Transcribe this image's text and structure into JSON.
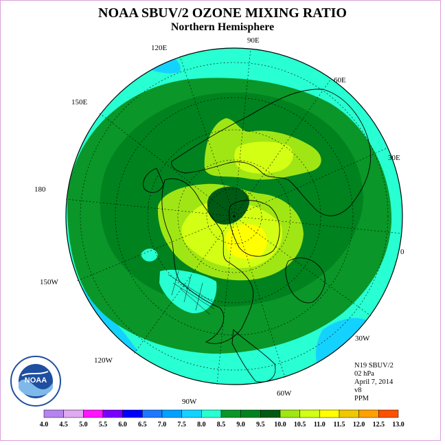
{
  "header": {
    "title": "NOAA SBUV/2 OZONE MIXING RATIO",
    "subtitle": "Northern Hemisphere"
  },
  "map": {
    "projection": "north polar stereographic",
    "longitude_labels": [
      "90E",
      "60E",
      "30E",
      "0",
      "30W",
      "60W",
      "90W",
      "120W",
      "150W",
      "180",
      "150E",
      "120E"
    ],
    "field": "ozone mixing ratio (PPM)"
  },
  "info": {
    "instrument": "N19 SBUV/2",
    "level": "02 hPa",
    "date": "April 7, 2014",
    "version": "v8",
    "units": "PPM"
  },
  "colorbar": {
    "labels": [
      "4.0",
      "4.5",
      "5.0",
      "5.5",
      "6.0",
      "6.5",
      "7.0",
      "7.5",
      "8.0",
      "8.5",
      "9.0",
      "9.5",
      "10.0",
      "10.5",
      "11.0",
      "11.5",
      "12.0",
      "12.5",
      "13.0"
    ],
    "colors": [
      "#b783f0",
      "#e0a8f0",
      "#ff14ff",
      "#7800ff",
      "#0000ff",
      "#1e78ff",
      "#00a0ff",
      "#14d2ff",
      "#28ffd2",
      "#0a9628",
      "#00821e",
      "#005a14",
      "#a0e614",
      "#d2ff14",
      "#ffff00",
      "#f0c800",
      "#ffa000",
      "#ff5000",
      "#ff0000",
      "#a0643c"
    ]
  },
  "logo": {
    "text": "NOAA",
    "ring_text": "NATIONAL OCEANIC AND ATMOSPHERIC ADMINISTRATION · U.S. DEPARTMENT OF COMMERCE"
  }
}
